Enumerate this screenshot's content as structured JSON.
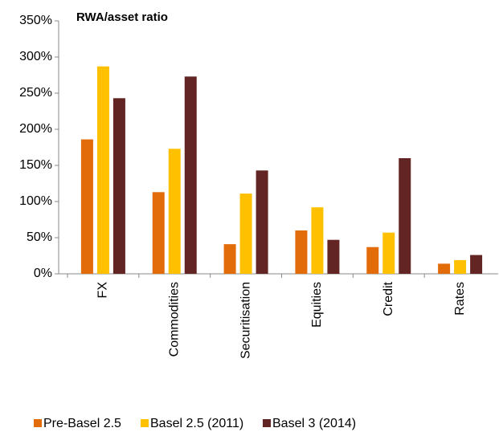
{
  "chart_data": {
    "type": "bar",
    "title": "RWA/asset ratio",
    "categories": [
      "FX",
      "Commodities",
      "Securitisation",
      "Equities",
      "Credit",
      "Rates"
    ],
    "series": [
      {
        "name": "Pre-Basel 2.5",
        "color": "#e36c0a",
        "values": [
          186,
          113,
          41,
          60,
          37,
          14
        ]
      },
      {
        "name": "Basel 2.5 (2011)",
        "color": "#ffc000",
        "values": [
          287,
          173,
          111,
          92,
          57,
          19
        ]
      },
      {
        "name": "Basel 3 (2014)",
        "color": "#632523",
        "values": [
          243,
          273,
          143,
          47,
          160,
          26
        ]
      }
    ],
    "ylim": [
      0,
      350
    ],
    "yticks": [
      {
        "value": 0,
        "label": "0%"
      },
      {
        "value": 50,
        "label": "50%"
      },
      {
        "value": 100,
        "label": "100%"
      },
      {
        "value": 150,
        "label": "150%"
      },
      {
        "value": 200,
        "label": "200%"
      },
      {
        "value": 250,
        "label": "250%"
      },
      {
        "value": 300,
        "label": "300%"
      },
      {
        "value": 350,
        "label": "350%"
      }
    ],
    "grid": false,
    "legend": "bottom"
  }
}
